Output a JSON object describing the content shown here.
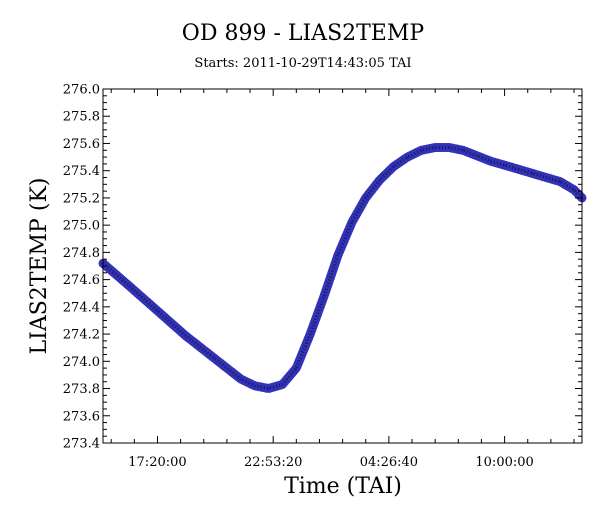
{
  "chart_data": {
    "type": "scatter",
    "title": "OD 899 - LIAS2TEMP",
    "subtitle": "Starts: 2011-10-29T14:43:05 TAI",
    "xlabel": "Time (TAI)",
    "ylabel": "LIAS2TEMP (K)",
    "grid": false,
    "legend": "none",
    "xlim": [
      "2011-10-29T14:43:05",
      "2011-10-30T13:43:00"
    ],
    "ylim": [
      273.4,
      276.0
    ],
    "x_ticks": [
      "17:20:00",
      "22:53:20",
      "04:26:40",
      "10:00:00"
    ],
    "x_tick_times": [
      "2011-10-29T17:20:00",
      "2011-10-29T22:53:20",
      "2011-10-30T04:26:40",
      "2011-10-30T10:00:00"
    ],
    "y_ticks": [
      "273.4",
      "273.6",
      "273.8",
      "274.0",
      "274.2",
      "274.4",
      "274.6",
      "274.8",
      "275.0",
      "275.2",
      "275.4",
      "275.6",
      "275.8",
      "276.0"
    ],
    "series_color": "#1c1cb0",
    "series": [
      {
        "x": [
          "2011-10-29T14:43:05",
          "2011-10-29T16:00:00",
          "2011-10-29T17:20:00",
          "2011-10-29T18:40:00",
          "2011-10-29T20:00:00",
          "2011-10-29T21:20:00",
          "2011-10-29T22:00:00",
          "2011-10-29T22:40:00",
          "2011-10-29T23:20:00",
          "2011-10-30T00:00:00",
          "2011-10-30T00:40:00",
          "2011-10-30T01:20:00",
          "2011-10-30T02:00:00",
          "2011-10-30T02:40:00",
          "2011-10-30T03:20:00",
          "2011-10-30T04:00:00",
          "2011-10-30T04:40:00",
          "2011-10-30T05:20:00",
          "2011-10-30T06:00:00",
          "2011-10-30T06:40:00",
          "2011-10-30T07:20:00",
          "2011-10-30T08:00:00",
          "2011-10-30T08:40:00",
          "2011-10-30T09:20:00",
          "2011-10-30T10:00:00",
          "2011-10-30T10:40:00",
          "2011-10-30T11:20:00",
          "2011-10-30T12:00:00",
          "2011-10-30T12:40:00",
          "2011-10-30T13:20:00",
          "2011-10-30T13:43:00"
        ],
        "y": [
          274.72,
          274.55,
          274.37,
          274.19,
          274.03,
          273.87,
          273.82,
          273.8,
          273.83,
          273.95,
          274.2,
          274.48,
          274.78,
          275.02,
          275.2,
          275.33,
          275.43,
          275.5,
          275.55,
          275.57,
          275.57,
          275.55,
          275.51,
          275.47,
          275.44,
          275.41,
          275.38,
          275.35,
          275.32,
          275.26,
          275.2
        ]
      }
    ]
  }
}
